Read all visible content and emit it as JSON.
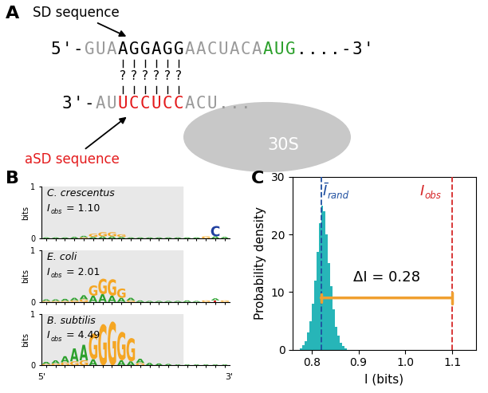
{
  "panel_labels": [
    "A",
    "B",
    "C"
  ],
  "diagram": {
    "sd_label": "SD sequence",
    "asd_label": "aSD sequence",
    "mrna": [
      {
        "text": "5'-",
        "color": "#000000"
      },
      {
        "text": "GUA",
        "color": "#9a9a9a"
      },
      {
        "text": "AGGAGG",
        "color": "#000000"
      },
      {
        "text": "AACUACA",
        "color": "#9a9a9a"
      },
      {
        "text": "AUG",
        "color": "#2ca02c"
      },
      {
        "text": "....-3'",
        "color": "#000000"
      }
    ],
    "rrna": [
      {
        "text": "3'-",
        "color": "#000000"
      },
      {
        "text": "AU",
        "color": "#9a9a9a"
      },
      {
        "text": "UCCUCC",
        "color": "#e41a1c"
      },
      {
        "text": "ACU...",
        "color": "#9a9a9a"
      }
    ],
    "pair_marks": [
      "?",
      "?",
      "?",
      "?",
      "?",
      "?"
    ],
    "subunit": "30S"
  },
  "logos": {
    "ylabel": "bits",
    "ylim": [
      0,
      1
    ],
    "yticks": [
      0,
      1
    ],
    "tick_labels": "y",
    "highlight_columns": [
      1,
      15
    ],
    "end_labels": [
      "5'",
      "3'"
    ],
    "letter_colors": {
      "A": "#2ca02c",
      "C": "#1f3f9f",
      "G": "#f5a623",
      "T": "#d62728"
    },
    "panels": [
      {
        "organism": "C. crescentus",
        "symbol": "I",
        "subscript": "obs",
        "value_text": " = 1.10",
        "columns": [
          {
            "A": 0.02
          },
          {
            "A": 0.02
          },
          {
            "A": 0.02
          },
          {
            "A": 0.03
          },
          {
            "A": 0.03,
            "G": 0.02
          },
          {
            "G": 0.06,
            "A": 0.03
          },
          {
            "G": 0.08,
            "A": 0.04
          },
          {
            "G": 0.08,
            "A": 0.04
          },
          {
            "G": 0.05,
            "A": 0.03
          },
          {
            "A": 0.02
          },
          {
            "A": 0.02
          },
          {
            "A": 0.02
          },
          {
            "A": 0.02
          },
          {
            "A": 0.02
          },
          {
            "A": 0.02
          },
          {
            "A": 0.02
          },
          {
            "A": 0.02
          },
          {
            "G": 0.04
          },
          {
            "C": 0.2,
            "A": 0.04
          },
          {
            "A": 0.03
          }
        ]
      },
      {
        "organism": "E. coli",
        "symbol": "I",
        "subscript": "obs",
        "value_text": " = 2.01",
        "columns": [
          {
            "A": 0.03,
            "G": 0.02
          },
          {
            "A": 0.03,
            "G": 0.02
          },
          {
            "A": 0.04,
            "G": 0.02
          },
          {
            "A": 0.05,
            "G": 0.03
          },
          {
            "A": 0.08,
            "G": 0.05
          },
          {
            "A": 0.12,
            "G": 0.2
          },
          {
            "A": 0.15,
            "G": 0.3
          },
          {
            "A": 0.12,
            "G": 0.32
          },
          {
            "A": 0.08,
            "G": 0.18
          },
          {
            "A": 0.05,
            "G": 0.03
          },
          {
            "A": 0.03
          },
          {
            "A": 0.02
          },
          {
            "A": 0.02
          },
          {
            "A": 0.02
          },
          {
            "A": 0.02
          },
          {
            "A": 0.03
          },
          {
            "A": 0.02
          },
          {
            "G": 0.03
          },
          {
            "A": 0.04,
            "T": 0.03
          },
          {
            "G": 0.03
          }
        ]
      },
      {
        "organism": "B. subtilis",
        "symbol": "I",
        "subscript": "obs",
        "value_text": " = 4.49",
        "columns": [
          {
            "A": 0.04,
            "G": 0.03
          },
          {
            "A": 0.06,
            "G": 0.04
          },
          {
            "A": 0.12,
            "G": 0.06
          },
          {
            "A": 0.25,
            "G": 0.08
          },
          {
            "A": 0.3,
            "G": 0.1
          },
          {
            "G": 0.5,
            "A": 0.12
          },
          {
            "G": 0.8
          },
          {
            "G": 0.85
          },
          {
            "G": 0.55,
            "A": 0.1
          },
          {
            "G": 0.45,
            "A": 0.08
          },
          {
            "A": 0.08,
            "G": 0.05
          },
          {
            "A": 0.05
          },
          {
            "A": 0.04
          },
          {
            "A": 0.03
          },
          {
            "A": 0.02
          },
          {
            "A": 0.02
          },
          {
            "A": 0.02
          },
          {
            "A": 0.02
          },
          {
            "A": 0.02
          },
          {
            "A": 0.02
          }
        ]
      }
    ]
  },
  "chart_data": {
    "type": "histogram",
    "xlabel": "I (bits)",
    "ylabel": "Probability density",
    "bins": [
      0.775,
      0.78,
      0.785,
      0.79,
      0.795,
      0.8,
      0.805,
      0.81,
      0.815,
      0.82,
      0.825,
      0.83,
      0.835,
      0.84,
      0.845,
      0.85,
      0.855,
      0.86,
      0.865,
      0.87,
      0.875
    ],
    "counts": [
      0.3,
      0.8,
      1.5,
      3,
      5,
      8,
      12,
      17,
      22,
      25,
      24,
      20,
      15,
      11,
      7,
      4,
      2.5,
      1.2,
      0.6,
      0.3
    ],
    "color": "#27b5b8",
    "xlim": [
      0.76,
      1.15
    ],
    "xticks": [
      0.8,
      0.9,
      {
        "value": 1.0,
        "label": "1.0"
      },
      1.1
    ],
    "ylim": [
      0,
      30
    ],
    "yticks": [
      0,
      10,
      20,
      30
    ],
    "annotations": [
      {
        "type": "vline",
        "x": 0.82,
        "color": "#1f4fa0",
        "symbol": "Ī",
        "subscript": "rand"
      },
      {
        "type": "vline",
        "x": 1.1,
        "color": "#d62728",
        "symbol": "I",
        "subscript": "obs"
      },
      {
        "type": "difference",
        "text": "ΔI = 0.28",
        "from": 0.82,
        "to": 1.1,
        "color": "#f0a030"
      }
    ]
  }
}
